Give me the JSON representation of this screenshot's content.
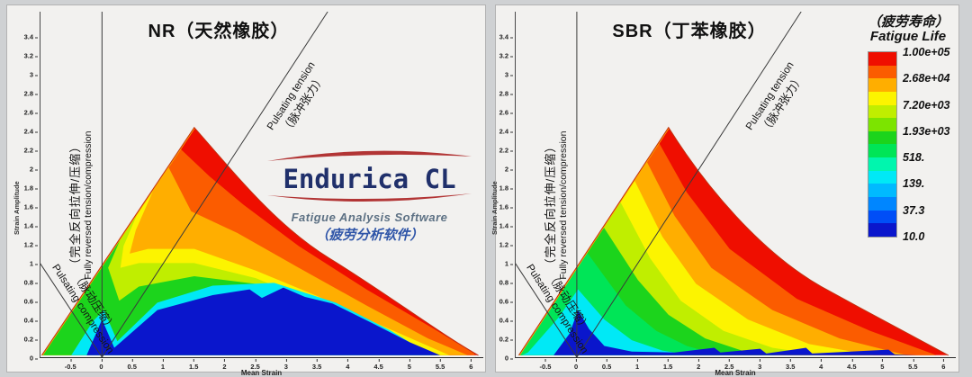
{
  "page": {
    "background": "#cfd1d3",
    "panel_bg": "#f2f1ef"
  },
  "axes": {
    "x_label": "Mean Strain",
    "y_label": "Strain Amplitude",
    "x_range": [
      -1.0,
      6.2
    ],
    "y_range": [
      0,
      3.67
    ],
    "x_ticks": [
      "-0.5",
      "0",
      "0.5",
      "1",
      "1.5",
      "2",
      "2.5",
      "3",
      "3.5",
      "4",
      "4.5",
      "5",
      "5.5",
      "6"
    ],
    "x_tick_values": [
      -0.5,
      0,
      0.5,
      1,
      1.5,
      2,
      2.5,
      3,
      3.5,
      4,
      4.5,
      5,
      5.5,
      6
    ],
    "y_ticks": [
      "0",
      "0.2",
      "0.4",
      "0.6",
      "0.8",
      "1",
      "1.2",
      "1.4",
      "1.6",
      "1.8",
      "2",
      "2.2",
      "2.4",
      "2.6",
      "2.8",
      "3",
      "3.2",
      "3.4"
    ],
    "y_tick_values": [
      0,
      0.2,
      0.4,
      0.6,
      0.8,
      1,
      1.2,
      1.4,
      1.6,
      1.8,
      2,
      2.2,
      2.4,
      2.6,
      2.8,
      3,
      3.2,
      3.4
    ]
  },
  "panels": [
    {
      "id": "nr",
      "title": "NR（天然橡胶）"
    },
    {
      "id": "sbr",
      "title": "SBR（丁苯橡胶）"
    }
  ],
  "annotations": {
    "pulsating_tension_en": "Pulsating tension",
    "pulsating_tension_cn": "（脉冲张力）",
    "pulsating_compression_en": "Pulsating compression",
    "pulsating_compression_cn": "（脉动压缩）",
    "fully_reversed_cn": "（完全反向拉伸/压缩）",
    "fully_reversed_en": "Fully reversed tension/compression"
  },
  "legend": {
    "title_cn": "（疲劳寿命）",
    "title_en": "Fatigue Life",
    "labels": [
      "1.00e+05",
      "2.68e+04",
      "7.20e+03",
      "1.93e+03",
      "518.",
      "139.",
      "37.3",
      "10.0"
    ],
    "band_colors": [
      "#0a16cc",
      "#004ef7",
      "#0086ff",
      "#00baff",
      "#00e9f6",
      "#00f6ae",
      "#00e557",
      "#1cd41c",
      "#7ce400",
      "#c0ee00",
      "#fcf400",
      "#ffae00",
      "#fb5c00",
      "#ef0e00"
    ],
    "edge_stroke": "#ffae00",
    "outline_stroke": "#c23010",
    "line_color": "#3a3a3a"
  },
  "logo": {
    "name": "Endurica CL",
    "subtitle_en": "Fatigue Analysis Software",
    "subtitle_cn": "（疲劳分析软件）",
    "text_color": "#20306b",
    "swoosh_color": "#b23535"
  },
  "chart_data": [
    {
      "type": "heatmap",
      "subtype": "filled-contour-haigh-diagram",
      "title": "NR（天然橡胶）",
      "material": "NR (natural rubber)",
      "xlabel": "Mean Strain",
      "ylabel": "Strain Amplitude",
      "xlim": [
        -1.0,
        6.2
      ],
      "ylim": [
        0,
        3.67
      ],
      "quantity": "Fatigue Life (cycles), log-spaced contour levels",
      "levels": [
        100000,
        26800,
        7200,
        1930,
        518,
        139,
        37.3,
        10.0
      ],
      "domain_vertices": [
        [
          -1.0,
          0
        ],
        [
          1.5,
          2.44
        ],
        [
          6.1,
          0
        ]
      ],
      "apex": [
        1.5,
        2.44
      ],
      "reference_lines": [
        {
          "name": "fully reversed tension/compression",
          "equation": "mean = 0"
        },
        {
          "name": "pulsating tension",
          "equation": "amplitude = mean"
        },
        {
          "name": "pulsating compression",
          "equation": "amplitude = -mean"
        }
      ],
      "description": "Long-life (blue, >1e5 cycles) dome spans the bottom up to amplitude ~0.8 across mean strains 0-5.5 showing strain-crystallization reinforcement; life decreases toward apex (red <10 cycles); notch near mean strain ~0.2."
    },
    {
      "type": "heatmap",
      "subtype": "filled-contour-haigh-diagram",
      "title": "SBR（丁苯橡胶）",
      "material": "SBR (styrene-butadiene rubber)",
      "xlabel": "Mean Strain",
      "ylabel": "Strain Amplitude",
      "xlim": [
        -1.0,
        6.2
      ],
      "ylim": [
        0,
        3.67
      ],
      "quantity": "Fatigue Life (cycles), log-spaced contour levels",
      "levels": [
        100000,
        26800,
        7200,
        1930,
        518,
        139,
        37.3,
        10.0
      ],
      "domain_vertices": [
        [
          -0.95,
          0
        ],
        [
          1.5,
          2.44
        ],
        [
          6.08,
          0
        ]
      ],
      "apex": [
        1.5,
        2.44
      ],
      "reference_lines": [
        {
          "name": "fully reversed tension/compression",
          "equation": "mean = 0"
        },
        {
          "name": "pulsating tension",
          "equation": "amplitude = mean"
        },
        {
          "name": "pulsating compression",
          "equation": "amplitude = -mean"
        }
      ],
      "description": "Short-life red/orange bands fan widely from the apex toward large mean strains; long-life blue confined to a thin strip near zero amplitude and a small bump near mean strain 0 (no crystallization benefit)."
    }
  ]
}
